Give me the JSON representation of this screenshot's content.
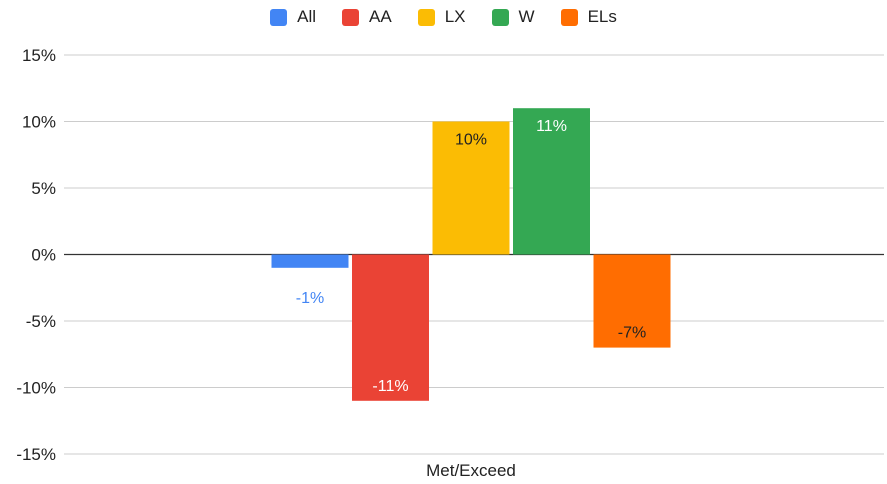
{
  "chart_data": {
    "type": "bar",
    "categories": [
      "Met/Exceed"
    ],
    "series": [
      {
        "name": "All",
        "values": [
          -1
        ],
        "color": "#4285f4",
        "label": "-1%",
        "label_color": "#4285f4"
      },
      {
        "name": "AA",
        "values": [
          -11
        ],
        "color": "#ea4335",
        "label": "-11%",
        "label_color": "#ffffff"
      },
      {
        "name": "LX",
        "values": [
          10
        ],
        "color": "#fbbc04",
        "label": "10%",
        "label_color": "#222222"
      },
      {
        "name": "W",
        "values": [
          11
        ],
        "color": "#34a853",
        "label": "11%",
        "label_color": "#ffffff"
      },
      {
        "name": "ELs",
        "values": [
          -7
        ],
        "color": "#ff6d01",
        "label": "-7%",
        "label_color": "#222222"
      }
    ],
    "ylim": [
      -15,
      15
    ],
    "yticks": [
      15,
      10,
      5,
      0,
      -5,
      -10,
      -15
    ],
    "ytick_labels": [
      "15%",
      "10%",
      "5%",
      "0%",
      "-5%",
      "-10%",
      "-15%"
    ],
    "grid": true,
    "legend_position": "top-center",
    "title": "",
    "xlabel": "",
    "ylabel": ""
  }
}
